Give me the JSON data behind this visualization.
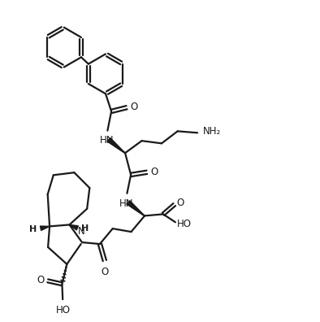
{
  "bg_color": "#ffffff",
  "line_color": "#1a1a1a",
  "line_width": 1.6,
  "figsize": [
    3.94,
    3.96
  ],
  "dpi": 100,
  "xlim": [
    0,
    10
  ],
  "ylim": [
    0,
    10
  ]
}
